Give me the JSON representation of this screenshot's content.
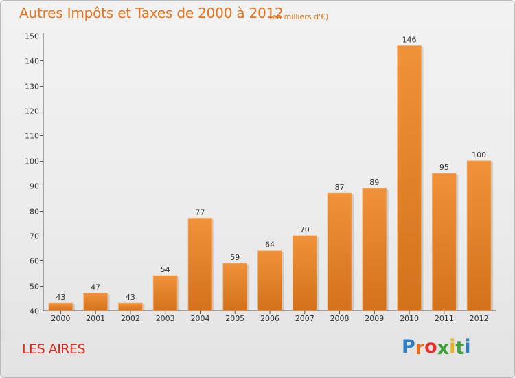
{
  "chart_data": {
    "type": "bar",
    "title": "Autres Impôts et Taxes de 2000 à 2012",
    "subtitle": "(en milliers d'€)",
    "categories": [
      "2000",
      "2001",
      "2002",
      "2003",
      "2004",
      "2005",
      "2006",
      "2007",
      "2008",
      "2009",
      "2010",
      "2011",
      "2012"
    ],
    "values": [
      43,
      47,
      43,
      54,
      77,
      59,
      64,
      70,
      87,
      89,
      146,
      95,
      100
    ],
    "ylim": [
      40,
      150
    ],
    "yticks": [
      40,
      50,
      60,
      70,
      80,
      90,
      100,
      110,
      120,
      130,
      140,
      150
    ],
    "grid": false,
    "bar_color": "#f0923a",
    "bar_color_dark": "#d4711c"
  },
  "footer": {
    "place": "LES AIRES",
    "logo_letters": [
      "P",
      "r",
      "o",
      "x",
      "i",
      "t",
      "i"
    ],
    "logo_colors": [
      "#2f7fc6",
      "#e56d1a",
      "#e2332a",
      "#3d9f3a",
      "#e9b416",
      "#3d9f3a",
      "#2f7fc6"
    ]
  }
}
